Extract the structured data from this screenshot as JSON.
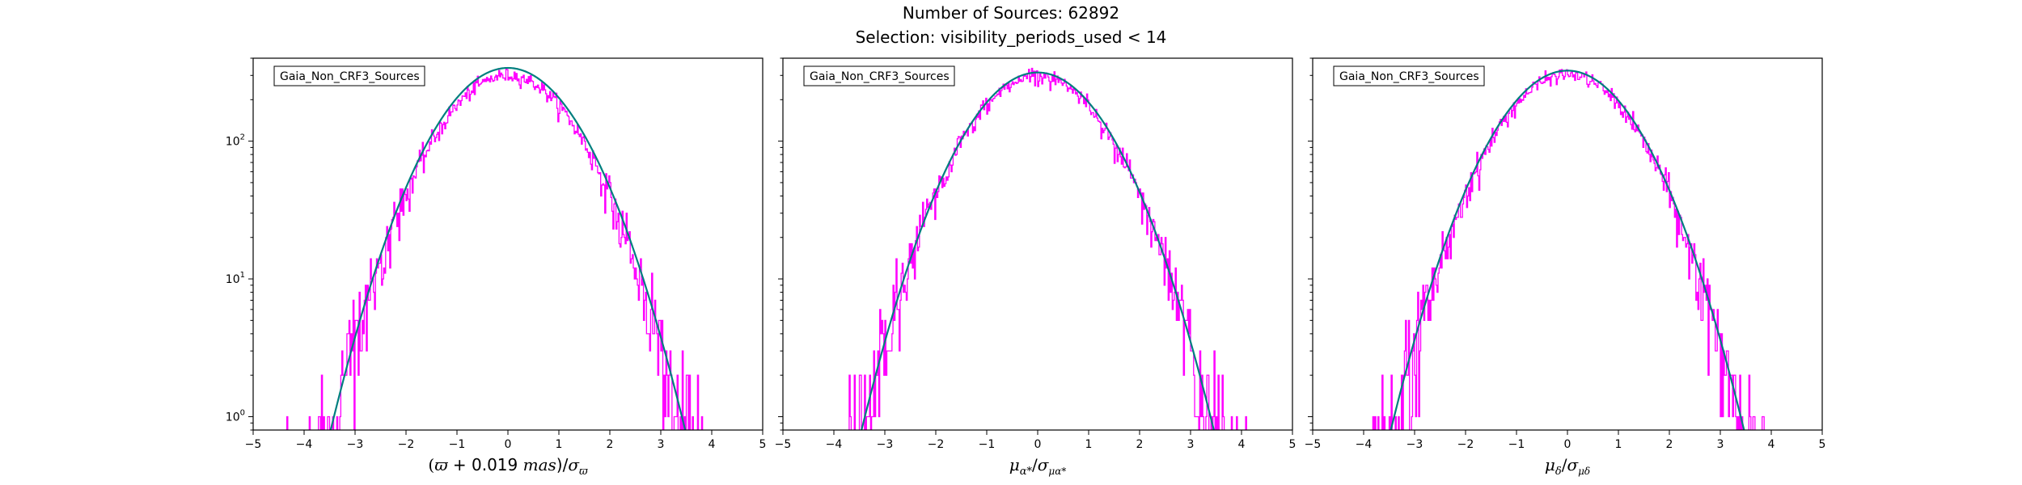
{
  "figure": {
    "title_line1": "Number of Sources: 62892",
    "title_line2": "Selection: visibility_periods_used < 14",
    "colors": {
      "histogram": "#ff00ff",
      "fit": "#007f7f",
      "fit_overlay": "#1f77b4"
    }
  },
  "chart_data": [
    {
      "type": "histogram",
      "legend_label": "Gaia_Non_CRF3_Sources",
      "legend_placement": "top-left",
      "xlabel_math": [
        "(",
        "ϖ",
        " + 0.019 ",
        "mas",
        ")/",
        "σ",
        "ϖ"
      ],
      "xlim": [
        -5,
        5
      ],
      "ylim": [
        0.8,
        400
      ],
      "yscale": "log",
      "x_ticks": [
        "−5",
        "−4",
        "−3",
        "−2",
        "−1",
        "0",
        "1",
        "2",
        "3",
        "4",
        "5"
      ],
      "y_ticks": [
        {
          "base": "10",
          "exp": "0",
          "value": 1
        },
        {
          "base": "10",
          "exp": "1",
          "value": 10
        },
        {
          "base": "10",
          "exp": "2",
          "value": 100
        }
      ],
      "gaussian_peak": 340,
      "hist_range": [
        -4.4,
        4.6
      ],
      "hist_peak": 300
    },
    {
      "type": "histogram",
      "legend_label": "Gaia_Non_CRF3_Sources",
      "legend_placement": "top-left",
      "xlabel_math": [
        "μ",
        "α*",
        "/",
        "σ",
        "μα*"
      ],
      "xlim": [
        -5,
        5
      ],
      "ylim": [
        0.8,
        400
      ],
      "yscale": "log",
      "x_ticks": [
        "−5",
        "−4",
        "−3",
        "−2",
        "−1",
        "0",
        "1",
        "2",
        "3",
        "4",
        "5"
      ],
      "gaussian_peak": 315,
      "hist_range": [
        -4.6,
        4.6
      ],
      "hist_peak": 300
    },
    {
      "type": "histogram",
      "legend_label": "Gaia_Non_CRF3_Sources",
      "legend_placement": "top-left",
      "xlabel_math": [
        "μ",
        "δ",
        "/",
        "σ",
        "μδ"
      ],
      "xlim": [
        -5,
        5
      ],
      "ylim": [
        0.8,
        400
      ],
      "yscale": "log",
      "x_ticks": [
        "−5",
        "−4",
        "−3",
        "−2",
        "−1",
        "0",
        "1",
        "2",
        "3",
        "4",
        "5"
      ],
      "gaussian_peak": 325,
      "hist_range": [
        -4.8,
        4.9
      ],
      "hist_peak": 305
    }
  ]
}
